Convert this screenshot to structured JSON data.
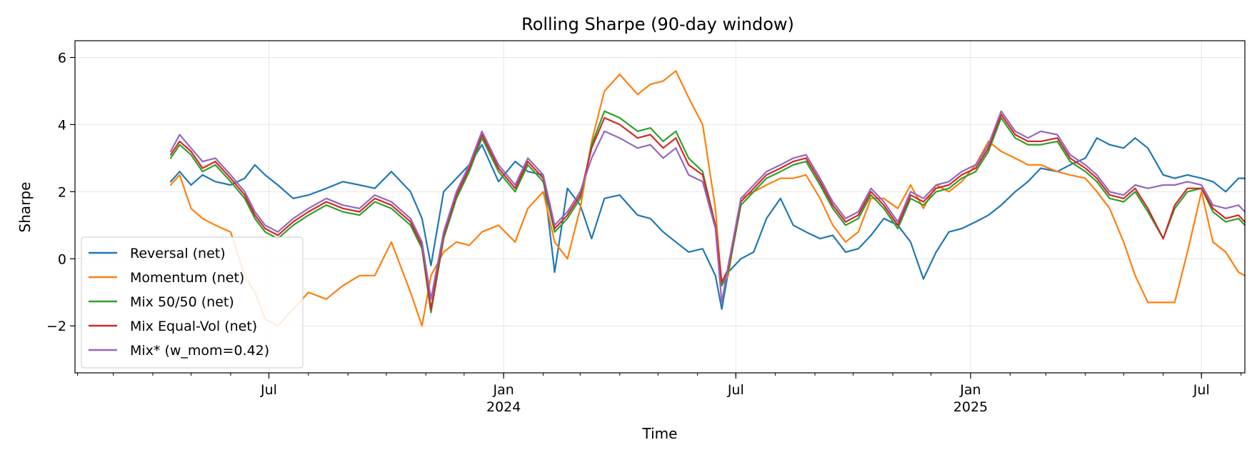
{
  "chart_data": {
    "type": "line",
    "title": "Rolling Sharpe (90-day window)",
    "xlabel": "Time",
    "ylabel": "Sharpe",
    "xlim": [
      "2023-01-30",
      "2025-08-04"
    ],
    "ylim": [
      -3.4,
      6.5
    ],
    "grid": true,
    "legend_position": "lower-left",
    "x_ticks": [
      {
        "date": "2023-07-01",
        "label": "Jul",
        "sublabel": ""
      },
      {
        "date": "2024-01-01",
        "label": "Jan",
        "sublabel": "2024"
      },
      {
        "date": "2024-07-01",
        "label": "Jul",
        "sublabel": ""
      },
      {
        "date": "2025-01-01",
        "label": "Jan",
        "sublabel": "2025"
      },
      {
        "date": "2025-07-01",
        "label": "Jul",
        "sublabel": ""
      }
    ],
    "y_ticks": [
      {
        "value": 6,
        "label": "6"
      },
      {
        "value": 4,
        "label": "4"
      },
      {
        "value": 2,
        "label": "2"
      },
      {
        "value": 0,
        "label": "0"
      },
      {
        "value": -2,
        "label": "−2"
      }
    ],
    "series": [
      {
        "name": "Reversal (net)",
        "color": "#1f77b4",
        "x": [
          "2023-04-15",
          "2023-04-22",
          "2023-05-01",
          "2023-05-10",
          "2023-05-20",
          "2023-06-01",
          "2023-06-12",
          "2023-06-20",
          "2023-06-28",
          "2023-07-08",
          "2023-07-20",
          "2023-08-01",
          "2023-08-15",
          "2023-08-28",
          "2023-09-10",
          "2023-09-22",
          "2023-10-05",
          "2023-10-20",
          "2023-10-29",
          "2023-11-05",
          "2023-11-15",
          "2023-11-25",
          "2023-12-05",
          "2023-12-15",
          "2023-12-28",
          "2024-01-10",
          "2024-01-20",
          "2024-02-01",
          "2024-02-10",
          "2024-02-20",
          "2024-03-01",
          "2024-03-10",
          "2024-03-20",
          "2024-04-01",
          "2024-04-15",
          "2024-04-25",
          "2024-05-05",
          "2024-05-15",
          "2024-05-25",
          "2024-06-05",
          "2024-06-15",
          "2024-06-20",
          "2024-06-25",
          "2024-07-05",
          "2024-07-15",
          "2024-07-25",
          "2024-08-05",
          "2024-08-15",
          "2024-08-25",
          "2024-09-05",
          "2024-09-15",
          "2024-09-25",
          "2024-10-05",
          "2024-10-15",
          "2024-10-25",
          "2024-11-05",
          "2024-11-15",
          "2024-11-25",
          "2024-12-05",
          "2024-12-15",
          "2024-12-25",
          "2025-01-05",
          "2025-01-15",
          "2025-01-25",
          "2025-02-05",
          "2025-02-15",
          "2025-02-25",
          "2025-03-10",
          "2025-03-20",
          "2025-04-01",
          "2025-04-10",
          "2025-04-20",
          "2025-05-01",
          "2025-05-10",
          "2025-05-20",
          "2025-06-01",
          "2025-06-10",
          "2025-06-20",
          "2025-07-01",
          "2025-07-10",
          "2025-07-20",
          "2025-07-30",
          "2025-08-04"
        ],
        "values": [
          2.3,
          2.6,
          2.2,
          2.5,
          2.3,
          2.2,
          2.4,
          2.8,
          2.5,
          2.2,
          1.8,
          1.9,
          2.1,
          2.3,
          2.2,
          2.1,
          2.6,
          2.0,
          1.2,
          -0.2,
          2.0,
          2.4,
          2.8,
          3.4,
          2.3,
          2.9,
          2.6,
          2.5,
          -0.4,
          2.1,
          1.6,
          0.6,
          1.8,
          1.9,
          1.3,
          1.2,
          0.8,
          0.5,
          0.2,
          0.3,
          -0.5,
          -1.5,
          -0.4,
          0.0,
          0.2,
          1.2,
          1.8,
          1.0,
          0.8,
          0.6,
          0.7,
          0.2,
          0.3,
          0.7,
          1.2,
          1.0,
          0.5,
          -0.6,
          0.2,
          0.8,
          0.9,
          1.1,
          1.3,
          1.6,
          2.0,
          2.3,
          2.7,
          2.6,
          2.8,
          3.0,
          3.6,
          3.4,
          3.3,
          3.6,
          3.3,
          2.5,
          2.4,
          2.5,
          2.4,
          2.3,
          2.0,
          2.4,
          2.4
        ]
      },
      {
        "name": "Momentum (net)",
        "color": "#ff7f0e",
        "x": [
          "2023-04-15",
          "2023-04-22",
          "2023-05-01",
          "2023-05-10",
          "2023-05-20",
          "2023-06-01",
          "2023-06-12",
          "2023-06-20",
          "2023-06-28",
          "2023-07-08",
          "2023-07-20",
          "2023-08-01",
          "2023-08-15",
          "2023-08-28",
          "2023-09-10",
          "2023-09-22",
          "2023-10-05",
          "2023-10-20",
          "2023-10-29",
          "2023-11-05",
          "2023-11-15",
          "2023-11-25",
          "2023-12-05",
          "2023-12-15",
          "2023-12-28",
          "2024-01-10",
          "2024-01-20",
          "2024-02-01",
          "2024-02-10",
          "2024-02-20",
          "2024-03-01",
          "2024-03-10",
          "2024-03-20",
          "2024-04-01",
          "2024-04-15",
          "2024-04-25",
          "2024-05-05",
          "2024-05-15",
          "2024-05-25",
          "2024-06-05",
          "2024-06-15",
          "2024-06-20",
          "2024-06-25",
          "2024-07-05",
          "2024-07-15",
          "2024-07-25",
          "2024-08-05",
          "2024-08-15",
          "2024-08-25",
          "2024-09-05",
          "2024-09-15",
          "2024-09-25",
          "2024-10-05",
          "2024-10-15",
          "2024-10-25",
          "2024-11-05",
          "2024-11-15",
          "2024-11-25",
          "2024-12-05",
          "2024-12-15",
          "2024-12-25",
          "2025-01-05",
          "2025-01-15",
          "2025-01-25",
          "2025-02-05",
          "2025-02-15",
          "2025-02-25",
          "2025-03-10",
          "2025-03-20",
          "2025-04-01",
          "2025-04-10",
          "2025-04-20",
          "2025-05-01",
          "2025-05-10",
          "2025-05-20",
          "2025-06-01",
          "2025-06-10",
          "2025-06-20",
          "2025-07-01",
          "2025-07-10",
          "2025-07-20",
          "2025-07-30",
          "2025-08-04"
        ],
        "values": [
          2.2,
          2.5,
          1.5,
          1.2,
          1.0,
          0.8,
          -0.5,
          -1.0,
          -1.8,
          -2.0,
          -1.5,
          -1.0,
          -1.2,
          -0.8,
          -0.5,
          -0.5,
          0.5,
          -1.0,
          -2.0,
          -0.5,
          0.2,
          0.5,
          0.4,
          0.8,
          1.0,
          0.5,
          1.5,
          2.0,
          0.5,
          0.0,
          1.5,
          3.5,
          5.0,
          5.5,
          4.9,
          5.2,
          5.3,
          5.6,
          4.8,
          4.0,
          1.5,
          -0.8,
          -0.5,
          1.8,
          2.0,
          2.2,
          2.4,
          2.4,
          2.5,
          1.8,
          1.0,
          0.5,
          0.8,
          1.8,
          1.8,
          1.5,
          2.2,
          1.5,
          2.2,
          2.0,
          2.3,
          2.8,
          3.5,
          3.2,
          3.0,
          2.8,
          2.8,
          2.6,
          2.5,
          2.4,
          2.0,
          1.5,
          0.5,
          -0.5,
          -1.3,
          -1.3,
          -1.3,
          0.2,
          2.0,
          0.5,
          0.2,
          -0.4,
          -0.5
        ]
      },
      {
        "name": "Mix 50/50 (net)",
        "color": "#2ca02c",
        "x": [
          "2023-04-15",
          "2023-04-22",
          "2023-05-01",
          "2023-05-10",
          "2023-05-20",
          "2023-06-01",
          "2023-06-12",
          "2023-06-20",
          "2023-06-28",
          "2023-07-08",
          "2023-07-20",
          "2023-08-01",
          "2023-08-15",
          "2023-08-28",
          "2023-09-10",
          "2023-09-22",
          "2023-10-05",
          "2023-10-20",
          "2023-10-29",
          "2023-11-05",
          "2023-11-15",
          "2023-11-25",
          "2023-12-05",
          "2023-12-15",
          "2023-12-28",
          "2024-01-10",
          "2024-01-20",
          "2024-02-01",
          "2024-02-10",
          "2024-02-20",
          "2024-03-01",
          "2024-03-10",
          "2024-03-20",
          "2024-04-01",
          "2024-04-15",
          "2024-04-25",
          "2024-05-05",
          "2024-05-15",
          "2024-05-25",
          "2024-06-05",
          "2024-06-15",
          "2024-06-20",
          "2024-06-25",
          "2024-07-05",
          "2024-07-15",
          "2024-07-25",
          "2024-08-05",
          "2024-08-15",
          "2024-08-25",
          "2024-09-05",
          "2024-09-15",
          "2024-09-25",
          "2024-10-05",
          "2024-10-15",
          "2024-10-25",
          "2024-11-05",
          "2024-11-15",
          "2024-11-25",
          "2024-12-05",
          "2024-12-15",
          "2024-12-25",
          "2025-01-05",
          "2025-01-15",
          "2025-01-25",
          "2025-02-05",
          "2025-02-15",
          "2025-02-25",
          "2025-03-10",
          "2025-03-20",
          "2025-04-01",
          "2025-04-10",
          "2025-04-20",
          "2025-05-01",
          "2025-05-10",
          "2025-05-20",
          "2025-06-01",
          "2025-06-10",
          "2025-06-20",
          "2025-07-01",
          "2025-07-10",
          "2025-07-20",
          "2025-07-30",
          "2025-08-04"
        ],
        "values": [
          3.0,
          3.4,
          3.1,
          2.6,
          2.8,
          2.3,
          1.8,
          1.2,
          0.8,
          0.6,
          1.0,
          1.3,
          1.6,
          1.4,
          1.3,
          1.7,
          1.5,
          1.0,
          0.3,
          -1.6,
          0.6,
          1.8,
          2.6,
          3.6,
          2.6,
          2.0,
          2.8,
          2.3,
          0.8,
          1.2,
          1.8,
          3.4,
          4.4,
          4.2,
          3.8,
          3.9,
          3.5,
          3.8,
          3.0,
          2.6,
          1.0,
          -0.8,
          -0.4,
          1.6,
          2.0,
          2.4,
          2.6,
          2.8,
          2.9,
          2.2,
          1.5,
          1.0,
          1.2,
          1.9,
          1.5,
          0.9,
          1.8,
          1.6,
          2.0,
          2.1,
          2.4,
          2.6,
          3.2,
          4.2,
          3.6,
          3.4,
          3.4,
          3.5,
          2.9,
          2.6,
          2.3,
          1.8,
          1.7,
          2.0,
          1.4,
          0.6,
          1.5,
          2.0,
          2.1,
          1.4,
          1.1,
          1.2,
          1.0
        ]
      },
      {
        "name": "Mix Equal-Vol (net)",
        "color": "#d62728",
        "x": [
          "2023-04-15",
          "2023-04-22",
          "2023-05-01",
          "2023-05-10",
          "2023-05-20",
          "2023-06-01",
          "2023-06-12",
          "2023-06-20",
          "2023-06-28",
          "2023-07-08",
          "2023-07-20",
          "2023-08-01",
          "2023-08-15",
          "2023-08-28",
          "2023-09-10",
          "2023-09-22",
          "2023-10-05",
          "2023-10-20",
          "2023-10-29",
          "2023-11-05",
          "2023-11-15",
          "2023-11-25",
          "2023-12-05",
          "2023-12-15",
          "2023-12-28",
          "2024-01-10",
          "2024-01-20",
          "2024-02-01",
          "2024-02-10",
          "2024-02-20",
          "2024-03-01",
          "2024-03-10",
          "2024-03-20",
          "2024-04-01",
          "2024-04-15",
          "2024-04-25",
          "2024-05-05",
          "2024-05-15",
          "2024-05-25",
          "2024-06-05",
          "2024-06-15",
          "2024-06-20",
          "2024-06-25",
          "2024-07-05",
          "2024-07-15",
          "2024-07-25",
          "2024-08-05",
          "2024-08-15",
          "2024-08-25",
          "2024-09-05",
          "2024-09-15",
          "2024-09-25",
          "2024-10-05",
          "2024-10-15",
          "2024-10-25",
          "2024-11-05",
          "2024-11-15",
          "2024-11-25",
          "2024-12-05",
          "2024-12-15",
          "2024-12-25",
          "2025-01-05",
          "2025-01-15",
          "2025-01-25",
          "2025-02-05",
          "2025-02-15",
          "2025-02-25",
          "2025-03-10",
          "2025-03-20",
          "2025-04-01",
          "2025-04-10",
          "2025-04-20",
          "2025-05-01",
          "2025-05-10",
          "2025-05-20",
          "2025-06-01",
          "2025-06-10",
          "2025-06-20",
          "2025-07-01",
          "2025-07-10",
          "2025-07-20",
          "2025-07-30",
          "2025-08-04"
        ],
        "values": [
          3.1,
          3.5,
          3.2,
          2.7,
          2.9,
          2.4,
          1.9,
          1.3,
          0.9,
          0.7,
          1.1,
          1.4,
          1.7,
          1.5,
          1.4,
          1.8,
          1.6,
          1.1,
          0.4,
          -1.5,
          0.7,
          1.9,
          2.7,
          3.7,
          2.7,
          2.1,
          2.9,
          2.4,
          0.9,
          1.3,
          1.9,
          3.3,
          4.2,
          4.0,
          3.6,
          3.7,
          3.3,
          3.6,
          2.8,
          2.5,
          1.0,
          -0.7,
          -0.3,
          1.7,
          2.1,
          2.5,
          2.7,
          2.9,
          3.0,
          2.3,
          1.6,
          1.1,
          1.3,
          2.0,
          1.6,
          1.0,
          1.9,
          1.7,
          2.1,
          2.2,
          2.5,
          2.7,
          3.3,
          4.3,
          3.7,
          3.5,
          3.5,
          3.6,
          3.0,
          2.7,
          2.4,
          1.9,
          1.8,
          2.1,
          1.5,
          0.6,
          1.6,
          2.1,
          2.1,
          1.5,
          1.2,
          1.3,
          1.1
        ]
      },
      {
        "name": "Mix* (w_mom=0.42)",
        "color": "#9467bd",
        "x": [
          "2023-04-15",
          "2023-04-22",
          "2023-05-01",
          "2023-05-10",
          "2023-05-20",
          "2023-06-01",
          "2023-06-12",
          "2023-06-20",
          "2023-06-28",
          "2023-07-08",
          "2023-07-20",
          "2023-08-01",
          "2023-08-15",
          "2023-08-28",
          "2023-09-10",
          "2023-09-22",
          "2023-10-05",
          "2023-10-20",
          "2023-10-29",
          "2023-11-05",
          "2023-11-15",
          "2023-11-25",
          "2023-12-05",
          "2023-12-15",
          "2023-12-28",
          "2024-01-10",
          "2024-01-20",
          "2024-02-01",
          "2024-02-10",
          "2024-02-20",
          "2024-03-01",
          "2024-03-10",
          "2024-03-20",
          "2024-04-01",
          "2024-04-15",
          "2024-04-25",
          "2024-05-05",
          "2024-05-15",
          "2024-05-25",
          "2024-06-05",
          "2024-06-15",
          "2024-06-20",
          "2024-06-25",
          "2024-07-05",
          "2024-07-15",
          "2024-07-25",
          "2024-08-05",
          "2024-08-15",
          "2024-08-25",
          "2024-09-05",
          "2024-09-15",
          "2024-09-25",
          "2024-10-05",
          "2024-10-15",
          "2024-10-25",
          "2024-11-05",
          "2024-11-15",
          "2024-11-25",
          "2024-12-05",
          "2024-12-15",
          "2024-12-25",
          "2025-01-05",
          "2025-01-15",
          "2025-01-25",
          "2025-02-05",
          "2025-02-15",
          "2025-02-25",
          "2025-03-10",
          "2025-03-20",
          "2025-04-01",
          "2025-04-10",
          "2025-04-20",
          "2025-05-01",
          "2025-05-10",
          "2025-05-20",
          "2025-06-01",
          "2025-06-10",
          "2025-06-20",
          "2025-07-01",
          "2025-07-10",
          "2025-07-20",
          "2025-07-30",
          "2025-08-04"
        ],
        "values": [
          3.2,
          3.7,
          3.3,
          2.9,
          3.0,
          2.5,
          2.0,
          1.4,
          1.0,
          0.8,
          1.2,
          1.5,
          1.8,
          1.6,
          1.5,
          1.9,
          1.7,
          1.2,
          0.5,
          -1.2,
          0.8,
          2.0,
          2.8,
          3.8,
          2.8,
          2.2,
          3.0,
          2.5,
          1.0,
          1.4,
          2.0,
          3.0,
          3.8,
          3.6,
          3.3,
          3.4,
          3.0,
          3.3,
          2.5,
          2.3,
          0.9,
          -1.3,
          -0.2,
          1.8,
          2.2,
          2.6,
          2.8,
          3.0,
          3.1,
          2.4,
          1.7,
          1.2,
          1.4,
          2.1,
          1.7,
          1.1,
          2.0,
          1.8,
          2.2,
          2.3,
          2.6,
          2.8,
          3.4,
          4.4,
          3.8,
          3.6,
          3.8,
          3.7,
          3.1,
          2.8,
          2.5,
          2.0,
          1.9,
          2.2,
          2.1,
          2.2,
          2.2,
          2.3,
          2.2,
          1.6,
          1.5,
          1.6,
          1.4
        ]
      }
    ]
  }
}
